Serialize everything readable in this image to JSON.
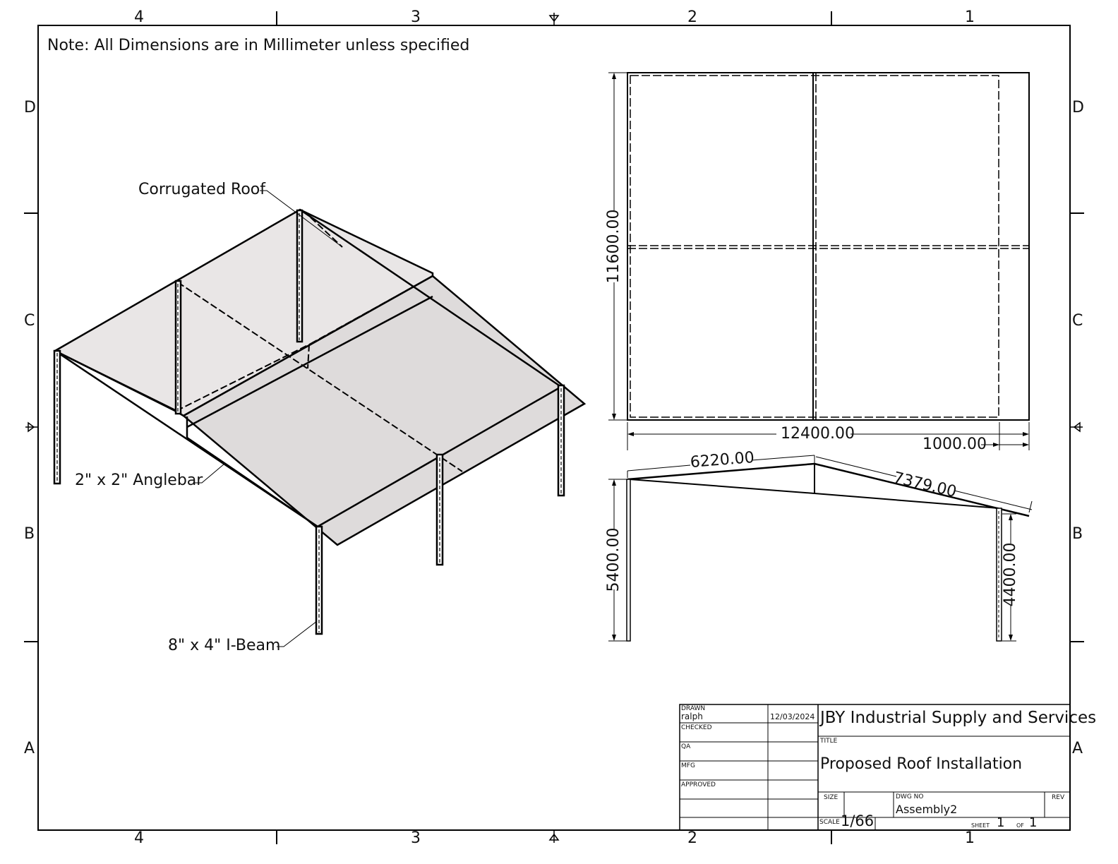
{
  "note": "Note: All Dimensions are in Millimeter unless specified",
  "zones": {
    "columns_top": [
      "4",
      "3",
      "2",
      "1"
    ],
    "columns_bottom": [
      "4",
      "3",
      "2",
      "1"
    ],
    "rows_left": [
      "D",
      "C",
      "B",
      "A"
    ],
    "rows_right": [
      "D",
      "C",
      "B",
      "A"
    ]
  },
  "callouts": {
    "corrugated_roof": "Corrugated Roof",
    "anglebar": "2\" x 2\" Anglebar",
    "ibeam": "8\" x 4\" I-Beam"
  },
  "dimensions": {
    "plan_height": "11600.00",
    "plan_width": "12400.00",
    "plan_overhang": "1000.00",
    "elev_left_rafter": "6220.00",
    "elev_right_rafter": "7379.00",
    "elev_left_height": "5400.00",
    "elev_right_height": "4400.00"
  },
  "title_block": {
    "drawn_label": "DRAWN",
    "drawn_by": "ralph",
    "drawn_date": "12/03/2024",
    "checked_label": "CHECKED",
    "qa_label": "QA",
    "mfg_label": "MFG",
    "approved_label": "APPROVED",
    "company": "JBY Industrial Supply and Services",
    "title_label": "TITLE",
    "title": "Proposed Roof Installation",
    "size_label": "SIZE",
    "dwg_no_label": "DWG NO",
    "dwg_no": "Assembly2",
    "rev_label": "REV",
    "scale_label": "SCALE",
    "scale": "1/66",
    "sheet_label": "SHEET",
    "sheet_no": "1",
    "of_label": "OF",
    "sheet_total": "1"
  }
}
